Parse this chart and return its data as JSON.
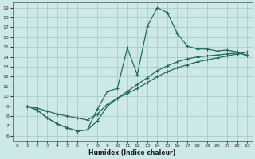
{
  "xlabel": "Humidex (Indice chaleur)",
  "bg_color": "#cde8e8",
  "grid_color": "#a8cccc",
  "line_color": "#1e6b60",
  "xlim": [
    -0.5,
    23.5
  ],
  "ylim": [
    5.5,
    19.5
  ],
  "xticks": [
    0,
    1,
    2,
    3,
    4,
    5,
    6,
    7,
    8,
    9,
    10,
    11,
    12,
    13,
    14,
    15,
    16,
    17,
    18,
    19,
    20,
    21,
    22,
    23
  ],
  "yticks": [
    6,
    7,
    8,
    9,
    10,
    11,
    12,
    13,
    14,
    15,
    16,
    17,
    18,
    19
  ],
  "line1_x": [
    1,
    2,
    3,
    4,
    5,
    6,
    7,
    8,
    9,
    10,
    11,
    12,
    13,
    14,
    15,
    16,
    17,
    18,
    19,
    20,
    21,
    22,
    23
  ],
  "line1_y": [
    9.0,
    8.6,
    7.8,
    7.2,
    6.8,
    6.5,
    6.6,
    8.7,
    10.5,
    10.8,
    14.9,
    12.2,
    17.1,
    19.0,
    18.5,
    16.4,
    15.1,
    14.8,
    14.8,
    14.6,
    14.7,
    14.5,
    14.1
  ],
  "line2_x": [
    1,
    2,
    3,
    4,
    5,
    6,
    7,
    8,
    9,
    10,
    11,
    12,
    13,
    14,
    15,
    16,
    17,
    18,
    19,
    20,
    21,
    22,
    23
  ],
  "line2_y": [
    9.0,
    8.8,
    8.5,
    8.2,
    8.0,
    7.8,
    7.6,
    8.2,
    9.2,
    9.8,
    10.3,
    10.8,
    11.4,
    12.0,
    12.5,
    12.9,
    13.2,
    13.5,
    13.7,
    13.9,
    14.1,
    14.3,
    14.5
  ],
  "line3_x": [
    1,
    2,
    3,
    4,
    5,
    6,
    7,
    8,
    9,
    10,
    11,
    12,
    13,
    14,
    15,
    16,
    17,
    18,
    19,
    20,
    21,
    22,
    23
  ],
  "line3_y": [
    9.0,
    8.6,
    7.8,
    7.2,
    6.8,
    6.5,
    6.6,
    7.5,
    9.0,
    9.8,
    10.5,
    11.2,
    11.9,
    12.6,
    13.1,
    13.5,
    13.8,
    14.0,
    14.1,
    14.2,
    14.3,
    14.4,
    14.2
  ]
}
